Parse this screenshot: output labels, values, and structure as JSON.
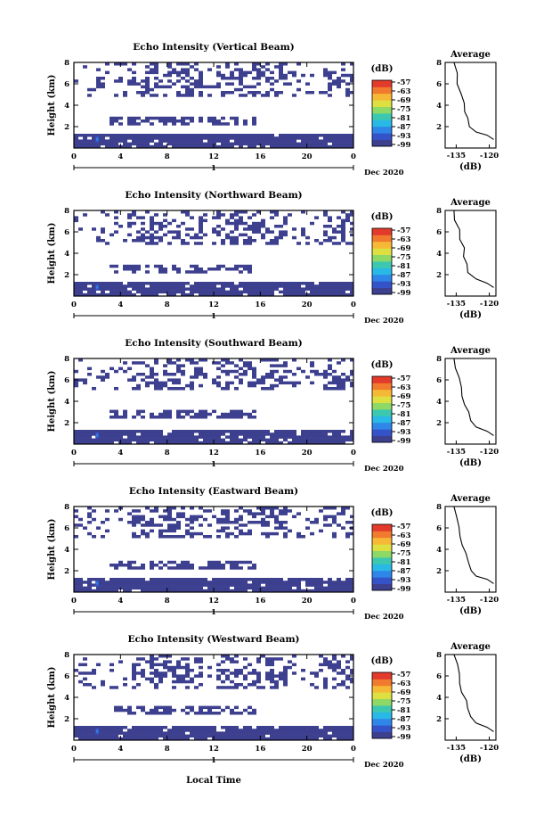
{
  "figure": {
    "xlabel": "Local Time",
    "date_label": "Dec 2020",
    "day_marker": "1",
    "colorbar_unit": "(dB)",
    "colorbar_ticks": [
      "-57",
      "-63",
      "-69",
      "-75",
      "-81",
      "-87",
      "-93",
      "-99"
    ],
    "avg_title": "Average",
    "avg_xlabel": "(dB)",
    "avg_xticks": [
      "-135",
      "-120"
    ],
    "colors": {
      "scale": [
        "#3d3f8f",
        "#3553c8",
        "#2e86e8",
        "#29b9e6",
        "#3cc8b0",
        "#8ed866",
        "#dde040",
        "#f6b935",
        "#f27a2e",
        "#e23a2b"
      ],
      "dominant": "#3d3f8f"
    }
  },
  "chart_data": [
    {
      "type": "heatmap",
      "title": "Echo Intensity (Vertical Beam)",
      "ylabel": "Height (km)",
      "xlim": [
        0,
        24
      ],
      "ylim": [
        0,
        8
      ],
      "xticks": [
        "0",
        "4",
        "8",
        "12",
        "16",
        "20",
        "0"
      ],
      "yticks": [
        "2",
        "4",
        "6",
        "8"
      ],
      "colorbar_range": [
        -99,
        -57
      ],
      "echo_layers_km": [
        [
          0.2,
          1.4
        ],
        [
          2.2,
          3.0
        ],
        [
          5.0,
          8.0
        ]
      ],
      "average_profile": {
        "title": "Average",
        "xlim": [
          -140,
          -117
        ],
        "ylim": [
          0,
          8
        ],
        "x": [
          -118,
          -121,
          -126,
          -129,
          -130,
          -131,
          -132,
          -133,
          -134,
          -135,
          -136
        ],
        "y": [
          0.8,
          1.2,
          1.5,
          2.0,
          2.8,
          3.4,
          4.2,
          5.0,
          6.0,
          7.0,
          8.0
        ]
      }
    },
    {
      "type": "heatmap",
      "title": "Echo Intensity (Northward Beam)",
      "ylabel": "Height (km)",
      "xlim": [
        0,
        24
      ],
      "ylim": [
        0,
        8
      ],
      "xticks": [
        "0",
        "4",
        "8",
        "12",
        "16",
        "20",
        "0"
      ],
      "yticks": [
        "2",
        "4",
        "6",
        "8"
      ],
      "colorbar_range": [
        -99,
        -57
      ],
      "echo_layers_km": [
        [
          0.2,
          1.5
        ],
        [
          2.3,
          3.1
        ],
        [
          5.0,
          8.0
        ]
      ],
      "average_profile": {
        "title": "Average",
        "xlim": [
          -140,
          -117
        ],
        "ylim": [
          0,
          8
        ],
        "x": [
          -118,
          -121,
          -126,
          -129,
          -130,
          -131,
          -132,
          -133,
          -134,
          -135,
          -136
        ],
        "y": [
          0.8,
          1.2,
          1.6,
          2.2,
          3.0,
          3.7,
          4.5,
          5.3,
          6.2,
          7.1,
          8.0
        ]
      }
    },
    {
      "type": "heatmap",
      "title": "Echo Intensity (Southward Beam)",
      "ylabel": "Height (km)",
      "xlim": [
        0,
        24
      ],
      "ylim": [
        0,
        8
      ],
      "xticks": [
        "0",
        "4",
        "8",
        "12",
        "16",
        "20",
        "0"
      ],
      "yticks": [
        "2",
        "4",
        "6",
        "8"
      ],
      "colorbar_range": [
        -99,
        -57
      ],
      "echo_layers_km": [
        [
          0.2,
          1.5
        ],
        [
          2.5,
          3.3
        ],
        [
          5.2,
          8.0
        ]
      ],
      "average_profile": {
        "title": "Average",
        "xlim": [
          -140,
          -117
        ],
        "ylim": [
          0,
          8
        ],
        "x": [
          -118,
          -121,
          -126,
          -129,
          -130,
          -131,
          -132,
          -133,
          -134,
          -135,
          -136
        ],
        "y": [
          0.8,
          1.2,
          1.6,
          2.2,
          3.0,
          3.7,
          4.5,
          5.3,
          6.2,
          7.1,
          8.0
        ]
      }
    },
    {
      "type": "heatmap",
      "title": "Echo Intensity (Eastward Beam)",
      "ylabel": "Height (km)",
      "xlim": [
        0,
        24
      ],
      "ylim": [
        0,
        8
      ],
      "xticks": [
        "0",
        "4",
        "8",
        "12",
        "16",
        "20",
        "0"
      ],
      "yticks": [
        "2",
        "4",
        "6",
        "8"
      ],
      "colorbar_range": [
        -99,
        -57
      ],
      "echo_layers_km": [
        [
          0.2,
          1.4
        ],
        [
          2.3,
          3.0
        ],
        [
          5.2,
          8.0
        ]
      ],
      "average_profile": {
        "title": "Average",
        "xlim": [
          -140,
          -117
        ],
        "ylim": [
          0,
          8
        ],
        "x": [
          -118,
          -121,
          -126,
          -129,
          -130,
          -131,
          -132,
          -133,
          -134,
          -135,
          -136
        ],
        "y": [
          0.8,
          1.2,
          1.5,
          2.0,
          2.8,
          3.6,
          4.4,
          5.2,
          6.1,
          7.0,
          8.0
        ]
      }
    },
    {
      "type": "heatmap",
      "title": "Echo Intensity (Westward Beam)",
      "ylabel": "Height (km)",
      "xlim": [
        0,
        24
      ],
      "ylim": [
        0,
        8
      ],
      "xticks": [
        "0",
        "4",
        "8",
        "12",
        "16",
        "20",
        "0"
      ],
      "yticks": [
        "2",
        "4",
        "6",
        "8"
      ],
      "colorbar_range": [
        -99,
        -57
      ],
      "echo_layers_km": [
        [
          0.2,
          1.5
        ],
        [
          2.5,
          3.2
        ],
        [
          5.0,
          8.0
        ]
      ],
      "average_profile": {
        "title": "Average",
        "xlim": [
          -140,
          -117
        ],
        "ylim": [
          0,
          8
        ],
        "x": [
          -118,
          -121,
          -126,
          -129,
          -130,
          -131,
          -132,
          -133,
          -134,
          -135,
          -136
        ],
        "y": [
          0.8,
          1.2,
          1.6,
          2.2,
          3.0,
          3.7,
          4.5,
          5.3,
          6.2,
          7.1,
          8.0
        ]
      }
    }
  ]
}
